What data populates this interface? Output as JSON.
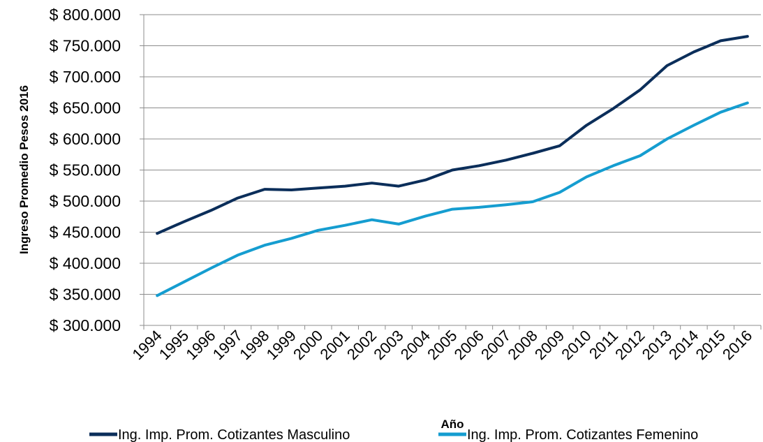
{
  "chart_data": {
    "type": "line",
    "title": "",
    "xlabel": "Año",
    "ylabel": "Ingreso Promedio Pesos 2016",
    "ylim": [
      300000,
      800000
    ],
    "ytick_labels": [
      "$ 300.000",
      "$ 350.000",
      "$ 400.000",
      "$ 450.000",
      "$ 500.000",
      "$ 550.000",
      "$ 600.000",
      "$ 650.000",
      "$ 700.000",
      "$ 750.000",
      "$ 800.000"
    ],
    "categories": [
      "1994",
      "1995",
      "1996",
      "1997",
      "1998",
      "1999",
      "2000",
      "2001",
      "2002",
      "2003",
      "2004",
      "2005",
      "2006",
      "2007",
      "2008",
      "2009",
      "2010",
      "2011",
      "2012",
      "2013",
      "2014",
      "2015",
      "2016"
    ],
    "grid": true,
    "legend_position": "bottom",
    "series": [
      {
        "name": "Ing. Imp. Prom. Cotizantes Masculino",
        "color": "#0b2e5a",
        "values": [
          448000,
          467000,
          485000,
          505000,
          519000,
          518000,
          521000,
          524000,
          529000,
          524000,
          534000,
          550000,
          557000,
          566000,
          577000,
          589000,
          622000,
          649000,
          679000,
          718000,
          740000,
          758000,
          765000
        ]
      },
      {
        "name": "Ing. Imp. Prom. Cotizantes Femenino",
        "color": "#159dd0",
        "values": [
          348000,
          370000,
          392000,
          413000,
          429000,
          440000,
          453000,
          461000,
          470000,
          463000,
          476000,
          487000,
          490000,
          494000,
          499000,
          514000,
          539000,
          557000,
          573000,
          600000,
          622000,
          643000,
          658000
        ]
      }
    ]
  }
}
